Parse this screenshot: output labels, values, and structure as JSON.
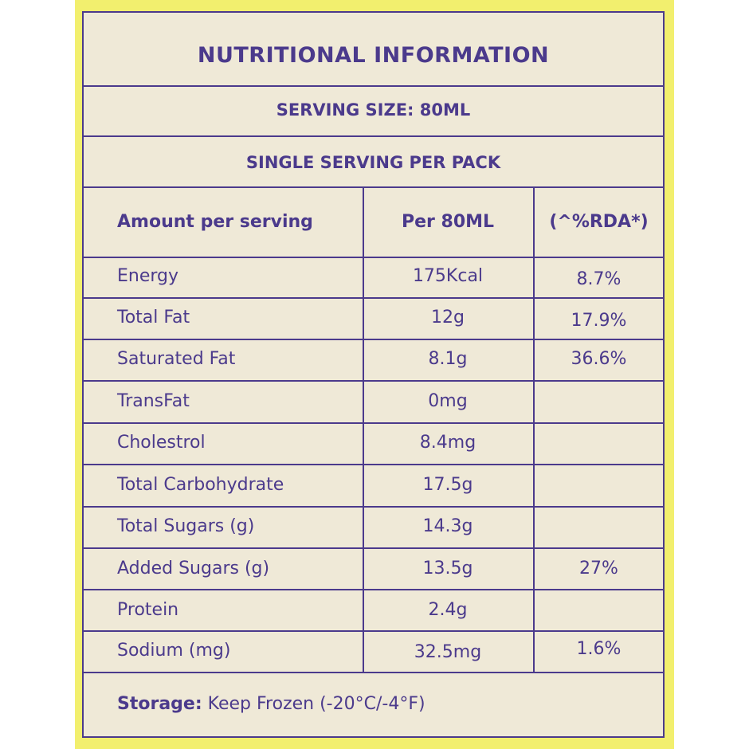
{
  "title": "NUTRITIONAL INFORMATION",
  "serving_size": "SERVING SIZE: 80ML",
  "servings_per_pack": "SINGLE SERVING PER PACK",
  "columns": {
    "nutrient": "Amount per serving",
    "amount": "Per 80ML",
    "rda": "(^%RDA*)"
  },
  "rows": [
    {
      "nutrient": "Energy",
      "amount": "175Kcal",
      "rda": "8.7%"
    },
    {
      "nutrient": "Total Fat",
      "amount": "12g",
      "rda": "17.9%"
    },
    {
      "nutrient": "Saturated Fat",
      "amount": "8.1g",
      "rda": "36.6%"
    },
    {
      "nutrient": "TransFat",
      "amount": "0mg",
      "rda": ""
    },
    {
      "nutrient": "Cholestrol",
      "amount": "8.4mg",
      "rda": ""
    },
    {
      "nutrient": "Total Carbohydrate",
      "amount": "17.5g",
      "rda": ""
    },
    {
      "nutrient": "Total Sugars (g)",
      "amount": "14.3g",
      "rda": ""
    },
    {
      "nutrient": "Added Sugars (g)",
      "amount": "13.5g",
      "rda": "27%"
    },
    {
      "nutrient": "Protein",
      "amount": "2.4g",
      "rda": ""
    },
    {
      "nutrient": "Sodium (mg)",
      "amount": "32.5mg",
      "rda": "1.6%"
    }
  ],
  "storage": {
    "label": "Storage:",
    "value": "Keep Frozen (-20°C/-4°F)"
  },
  "colors": {
    "frame": "#f2ef6e",
    "panel": "#efe9d7",
    "ink": "#4b3a8c"
  }
}
